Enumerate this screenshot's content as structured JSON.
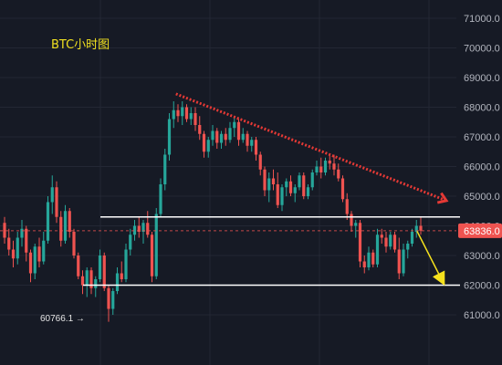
{
  "title": "BTC小时图",
  "low_marker": "60766.1 →",
  "colors": {
    "background": "#161a25",
    "grid": "#232734",
    "up": "#26a69a",
    "down": "#ef5350",
    "support_resistance": "#ffffff",
    "trendline": "#e53935",
    "arrow": "#f5e11d",
    "price_tag": "#ef5350",
    "axis_text": "#b2b5be"
  },
  "chart_data": {
    "type": "candlestick",
    "title": "BTC小时图",
    "xlabel": "",
    "ylabel": "",
    "ylim": [
      60300,
      71400
    ],
    "y_ticks": [
      71000,
      70000,
      69000,
      68000,
      67000,
      66000,
      65000,
      64000,
      63000,
      62000,
      61000
    ],
    "y_tick_labels": [
      "71000.0",
      "70000.0",
      "69000.0",
      "68000.0",
      "67000.0",
      "66000.0",
      "65000.0",
      "64000.0",
      "63000.0",
      "62000.0",
      "61000.0"
    ],
    "current_price": 63836,
    "current_price_label": "63836.0",
    "low_label": "60766.1",
    "grid": true,
    "candles": [
      [
        64100,
        64300,
        63400,
        63600
      ],
      [
        63600,
        63900,
        63000,
        63200
      ],
      [
        63200,
        63500,
        62600,
        62900
      ],
      [
        62900,
        63800,
        62700,
        63600
      ],
      [
        63600,
        64200,
        63300,
        63900
      ],
      [
        63900,
        64000,
        62800,
        63100
      ],
      [
        63100,
        63200,
        62100,
        62400
      ],
      [
        62400,
        63400,
        62200,
        63300
      ],
      [
        63300,
        63600,
        62600,
        62800
      ],
      [
        62800,
        63800,
        62700,
        63500
      ],
      [
        63500,
        65000,
        63400,
        64800
      ],
      [
        64800,
        65700,
        64400,
        65300
      ],
      [
        65300,
        65500,
        64100,
        64300
      ],
      [
        64300,
        64500,
        63300,
        63500
      ],
      [
        63500,
        64700,
        63400,
        64500
      ],
      [
        64500,
        64600,
        63600,
        63800
      ],
      [
        63800,
        63900,
        62900,
        63000
      ],
      [
        63000,
        63100,
        62200,
        62300
      ],
      [
        62300,
        62500,
        61700,
        62000
      ],
      [
        62000,
        62600,
        61600,
        62500
      ],
      [
        62500,
        62600,
        61700,
        61900
      ],
      [
        61900,
        62300,
        61600,
        62200
      ],
      [
        62200,
        63200,
        62100,
        63000
      ],
      [
        63000,
        63100,
        61800,
        61900
      ],
      [
        61900,
        62000,
        60766.1,
        61200
      ],
      [
        61200,
        61900,
        61000,
        61800
      ],
      [
        61800,
        62600,
        61700,
        62400
      ],
      [
        62400,
        62800,
        62100,
        62200
      ],
      [
        62200,
        63400,
        62100,
        63200
      ],
      [
        63200,
        63900,
        63000,
        63700
      ],
      [
        63700,
        64200,
        63500,
        64000
      ],
      [
        64000,
        64300,
        63600,
        63800
      ],
      [
        63800,
        64200,
        63400,
        64100
      ],
      [
        64100,
        64500,
        63600,
        63700
      ],
      [
        63700,
        63800,
        62100,
        62300
      ],
      [
        62300,
        64600,
        62200,
        64400
      ],
      [
        64400,
        65600,
        64300,
        65400
      ],
      [
        65400,
        66600,
        65200,
        66400
      ],
      [
        66400,
        67800,
        66200,
        67600
      ],
      [
        67600,
        68200,
        67300,
        67900
      ],
      [
        67900,
        68100,
        67500,
        67700
      ],
      [
        67700,
        68200,
        67400,
        68000
      ],
      [
        68000,
        68100,
        67500,
        67600
      ],
      [
        67600,
        68000,
        67400,
        67800
      ],
      [
        67800,
        68000,
        67200,
        67400
      ],
      [
        67400,
        67700,
        66900,
        67100
      ],
      [
        67100,
        67200,
        66300,
        66500
      ],
      [
        66500,
        67000,
        66300,
        66900
      ],
      [
        66900,
        67400,
        66700,
        67200
      ],
      [
        67200,
        67300,
        66600,
        66800
      ],
      [
        66800,
        67200,
        66600,
        67100
      ],
      [
        67100,
        67300,
        66700,
        66900
      ],
      [
        66900,
        67500,
        66800,
        67300
      ],
      [
        67300,
        67700,
        67000,
        67500
      ],
      [
        67500,
        67600,
        66700,
        66900
      ],
      [
        66900,
        67300,
        66800,
        67100
      ],
      [
        67100,
        67200,
        66500,
        66700
      ],
      [
        66700,
        67000,
        66500,
        66900
      ],
      [
        66900,
        67000,
        66200,
        66400
      ],
      [
        66400,
        66500,
        65700,
        65900
      ],
      [
        65900,
        66000,
        65000,
        65200
      ],
      [
        65200,
        65800,
        64800,
        65600
      ],
      [
        65600,
        65900,
        65200,
        65400
      ],
      [
        65400,
        65800,
        64600,
        64700
      ],
      [
        64700,
        65400,
        64500,
        65300
      ],
      [
        65300,
        65600,
        65000,
        65500
      ],
      [
        65500,
        65700,
        65000,
        65100
      ],
      [
        65100,
        65400,
        64800,
        65300
      ],
      [
        65300,
        65800,
        65200,
        65700
      ],
      [
        65700,
        65800,
        64900,
        65000
      ],
      [
        65000,
        65400,
        64900,
        65300
      ],
      [
        65300,
        65900,
        65200,
        65800
      ],
      [
        65800,
        66200,
        65700,
        66000
      ],
      [
        66000,
        66300,
        65600,
        65800
      ],
      [
        65800,
        66300,
        65700,
        66200
      ],
      [
        66200,
        66400,
        65900,
        66100
      ],
      [
        66100,
        66400,
        65700,
        65900
      ],
      [
        65900,
        66100,
        65500,
        65600
      ],
      [
        65600,
        65700,
        64800,
        64900
      ],
      [
        64900,
        65100,
        64200,
        64400
      ],
      [
        64400,
        64500,
        63800,
        64000
      ],
      [
        64000,
        64200,
        63600,
        64100
      ],
      [
        64100,
        64200,
        62600,
        62800
      ],
      [
        62800,
        63000,
        62400,
        62600
      ],
      [
        62600,
        63300,
        62500,
        63100
      ],
      [
        63100,
        63200,
        62600,
        62700
      ],
      [
        62700,
        63900,
        62600,
        63700
      ],
      [
        63700,
        63900,
        63400,
        63600
      ],
      [
        63600,
        63800,
        63100,
        63300
      ],
      [
        63300,
        63800,
        63200,
        63700
      ],
      [
        63700,
        63800,
        63100,
        63200
      ],
      [
        63200,
        63600,
        62200,
        62400
      ],
      [
        62400,
        63400,
        62300,
        63200
      ],
      [
        63200,
        63500,
        62900,
        63400
      ],
      [
        63400,
        63900,
        63300,
        63800
      ],
      [
        63800,
        64200,
        63600,
        64000
      ],
      [
        64000,
        64300,
        63700,
        63836
      ]
    ],
    "annotations": [
      {
        "type": "horizontal_segment",
        "name": "resistance",
        "y": 64300,
        "x_from_index": 20,
        "x_to": "edge"
      },
      {
        "type": "horizontal_segment",
        "name": "support",
        "y": 62000,
        "x_from_index": 16,
        "x_to": "edge"
      },
      {
        "type": "dotted_trendline_arrow",
        "name": "downtrend",
        "from": {
          "index": 29,
          "value": 68450
        },
        "to": {
          "index": "edge",
          "value": 64850
        }
      },
      {
        "type": "arrow",
        "name": "target",
        "from": {
          "index": 72,
          "value": 64000
        },
        "to": {
          "index": "edge",
          "value": 62000
        }
      }
    ]
  }
}
